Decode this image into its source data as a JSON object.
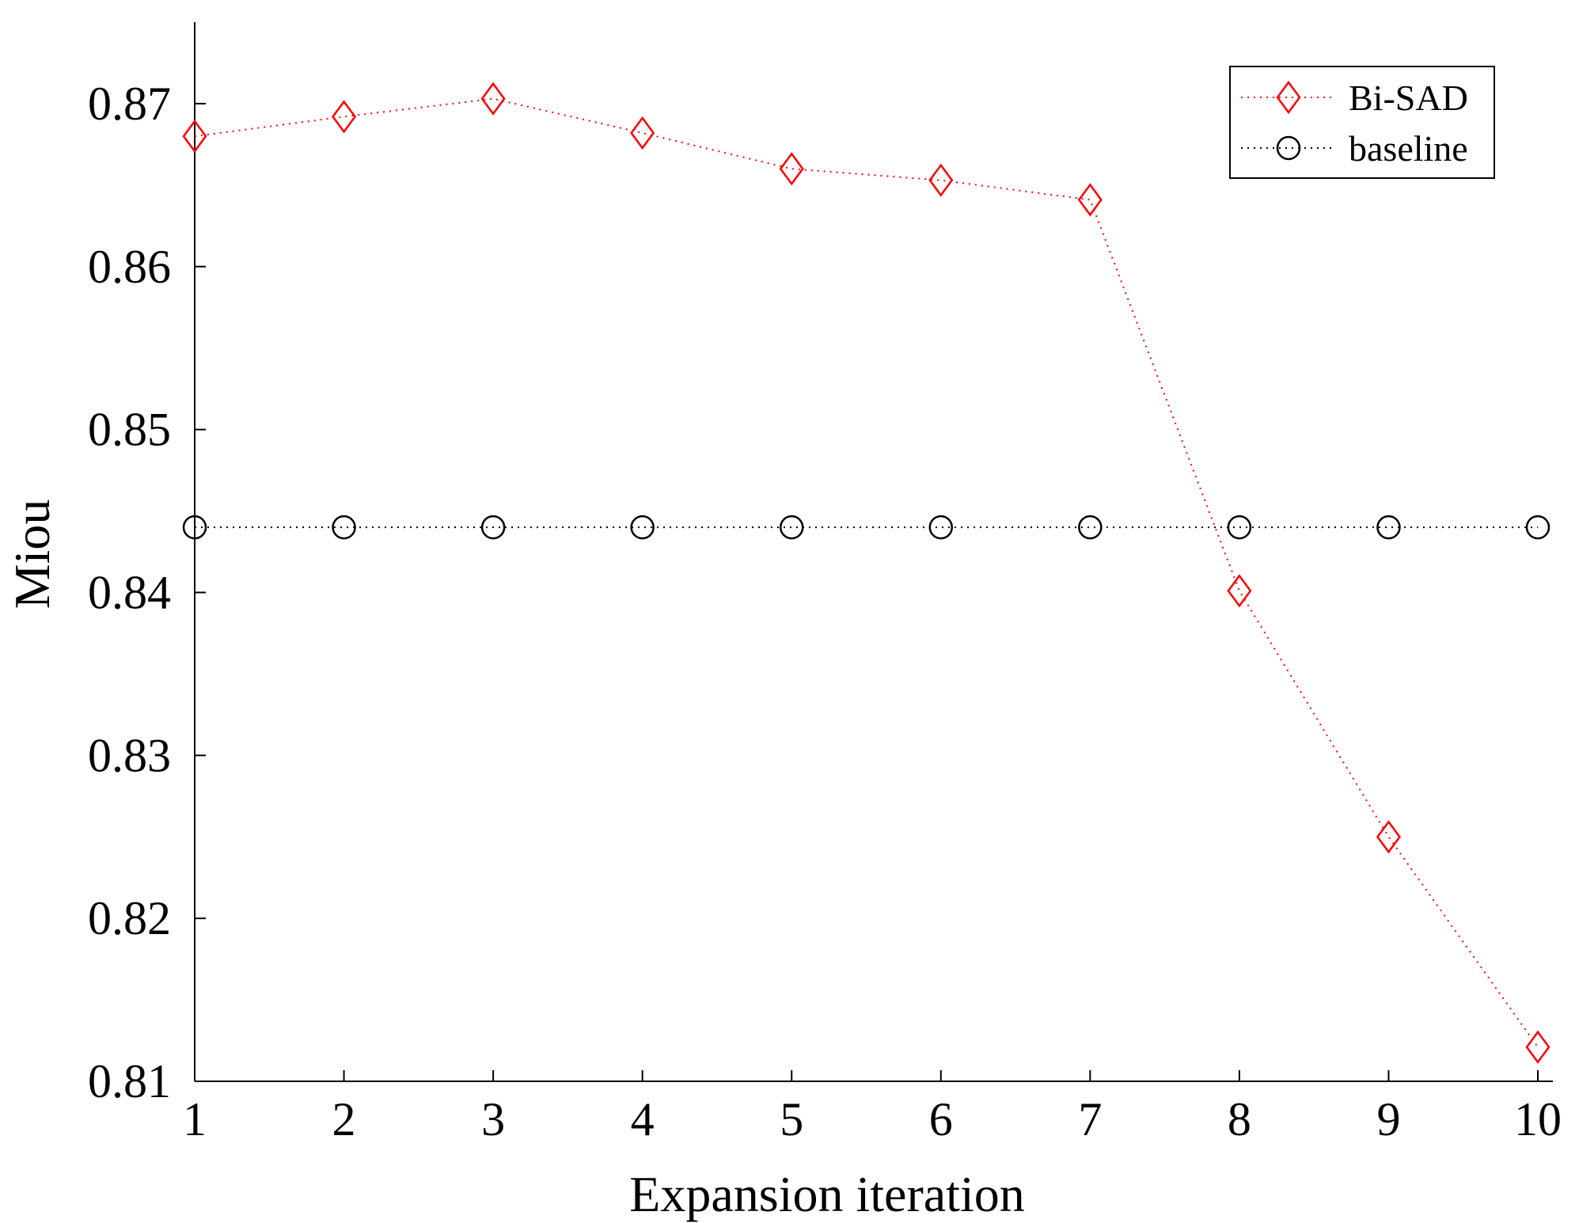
{
  "chart_data": {
    "type": "line",
    "xlabel": "Expansion iteration",
    "ylabel": "Miou",
    "x": [
      1,
      2,
      3,
      4,
      5,
      6,
      7,
      8,
      9,
      10
    ],
    "xlim": [
      1,
      10
    ],
    "ylim": [
      0.81,
      0.875
    ],
    "xticks": [
      "1",
      "2",
      "3",
      "4",
      "5",
      "6",
      "7",
      "8",
      "9",
      "10"
    ],
    "yticks": [
      "0.81",
      "0.82",
      "0.83",
      "0.84",
      "0.85",
      "0.86",
      "0.87"
    ],
    "ytick_values": [
      0.81,
      0.82,
      0.83,
      0.84,
      0.85,
      0.86,
      0.87
    ],
    "grid": false,
    "legend_position": "top-right",
    "series": [
      {
        "name": "Bi-SAD",
        "color": "#ff0000",
        "marker": "diamond",
        "line_style": "dotted",
        "values": [
          0.868,
          0.8692,
          0.8703,
          0.8682,
          0.866,
          0.8653,
          0.8641,
          0.8401,
          0.825,
          0.8121
        ]
      },
      {
        "name": "baseline",
        "color": "#000000",
        "marker": "circle",
        "line_style": "dotted",
        "values": [
          0.844,
          0.844,
          0.844,
          0.844,
          0.844,
          0.844,
          0.844,
          0.844,
          0.844,
          0.844
        ]
      }
    ]
  }
}
